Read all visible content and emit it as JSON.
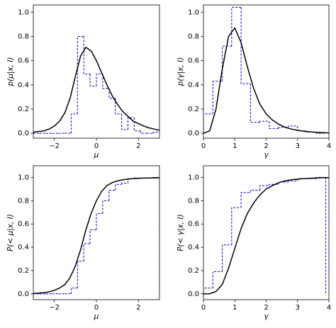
{
  "chart_data": [
    {
      "type": "histogram",
      "xlabel": "μ",
      "ylabel": "p(μ|x, I)",
      "bins": [
        -3.0,
        -2.7,
        -2.4,
        -2.1,
        -1.8,
        -1.5,
        -1.2,
        -0.9,
        -0.6,
        -0.3,
        0.0,
        0.3,
        0.6,
        0.9,
        1.2,
        1.5,
        1.8,
        2.1,
        2.4,
        2.7,
        3.0
      ],
      "values": [
        0,
        0,
        0,
        0,
        0,
        0,
        0.16,
        0.8,
        0.49,
        0.39,
        0.49,
        0.37,
        0.29,
        0.16,
        0.03,
        0.13,
        0.02,
        0,
        0,
        0.01
      ],
      "color": "#0000cc",
      "line": {
        "x": [
          -3,
          -2.75,
          -2.5,
          -2.25,
          -2,
          -1.75,
          -1.5,
          -1.25,
          -1,
          -0.75,
          -0.5,
          -0.25,
          0,
          0.25,
          0.5,
          0.75,
          1,
          1.25,
          1.5,
          1.75,
          2,
          2.25,
          2.5,
          2.75,
          3
        ],
        "values": [
          0.01,
          0.015,
          0.02,
          0.035,
          0.06,
          0.1,
          0.17,
          0.29,
          0.47,
          0.64,
          0.71,
          0.68,
          0.6,
          0.5,
          0.4,
          0.31,
          0.24,
          0.18,
          0.14,
          0.1,
          0.08,
          0.06,
          0.045,
          0.035,
          0.025
        ],
        "color": "#000000"
      },
      "xlim": [
        -3,
        3
      ],
      "ylim": [
        -0.04,
        1.06
      ],
      "xticks": [
        {
          "value": -2,
          "label": "−2"
        },
        0,
        2
      ],
      "yticks": [
        {
          "value": 0,
          "label": "0.0"
        },
        0.2,
        0.4,
        0.6,
        0.8,
        {
          "value": 1,
          "label": "1.0"
        }
      ]
    },
    {
      "type": "histogram",
      "xlabel": "γ",
      "ylabel": "p(γ|x, I)",
      "bins": [
        0,
        0.3,
        0.6,
        0.9,
        1.2,
        1.5,
        1.8,
        2.1,
        2.4,
        2.7,
        3.0,
        3.3,
        3.6,
        3.9
      ],
      "values": [
        0.16,
        0.43,
        0.72,
        1.04,
        0.41,
        0.09,
        0.1,
        0.04,
        0.05,
        0.06,
        0.02,
        0.01,
        0
      ],
      "color": "#0000cc",
      "line": {
        "x": [
          0,
          0.2,
          0.4,
          0.6,
          0.8,
          1.0,
          1.2,
          1.4,
          1.6,
          1.8,
          2.0,
          2.2,
          2.4,
          2.6,
          2.8,
          3.0,
          3.2,
          3.4,
          3.6,
          3.8,
          4.0
        ],
        "values": [
          0,
          0.02,
          0.2,
          0.53,
          0.8,
          0.87,
          0.75,
          0.55,
          0.37,
          0.24,
          0.16,
          0.11,
          0.075,
          0.05,
          0.035,
          0.025,
          0.017,
          0.012,
          0.008,
          0.005,
          0.003
        ],
        "color": "#000000"
      },
      "xlim": [
        0,
        4
      ],
      "ylim": [
        -0.04,
        1.06
      ],
      "xticks": [
        0,
        1,
        2,
        3,
        4
      ],
      "yticks": [
        {
          "value": 0,
          "label": "0.0"
        },
        0.2,
        0.4,
        0.6,
        0.8,
        {
          "value": 1,
          "label": "1.0"
        }
      ]
    },
    {
      "type": "histogram",
      "xlabel": "μ",
      "ylabel": "P(< μ|x, I)",
      "bins": [
        -3.0,
        -2.7,
        -2.4,
        -2.1,
        -1.8,
        -1.5,
        -1.2,
        -0.9,
        -0.6,
        -0.3,
        0.0,
        0.3,
        0.6,
        0.9,
        1.2,
        1.5,
        1.8,
        2.1,
        2.4,
        2.7,
        3.0
      ],
      "values": [
        0,
        0,
        0,
        0,
        0,
        0,
        0.05,
        0.28,
        0.43,
        0.55,
        0.69,
        0.8,
        0.89,
        0.94,
        0.95,
        0.99,
        0.995,
        0.995,
        0.995,
        1.0
      ],
      "color": "#0000cc",
      "line": {
        "x": [
          -3,
          -2.75,
          -2.5,
          -2.25,
          -2,
          -1.75,
          -1.5,
          -1.25,
          -1,
          -0.75,
          -0.5,
          -0.25,
          0,
          0.25,
          0.5,
          0.75,
          1,
          1.25,
          1.5,
          1.75,
          2,
          2.25,
          2.5,
          2.75,
          3
        ],
        "values": [
          0.003,
          0.006,
          0.01,
          0.017,
          0.03,
          0.05,
          0.08,
          0.14,
          0.24,
          0.38,
          0.55,
          0.69,
          0.8,
          0.88,
          0.93,
          0.955,
          0.97,
          0.98,
          0.985,
          0.99,
          0.992,
          0.994,
          0.995,
          0.996,
          0.997
        ],
        "color": "#000000"
      },
      "xlim": [
        -3,
        3
      ],
      "ylim": [
        -0.05,
        1.1
      ],
      "xticks": [
        {
          "value": -2,
          "label": "−2"
        },
        0,
        2
      ],
      "yticks": [
        {
          "value": 0,
          "label": "0.0"
        },
        0.2,
        0.4,
        0.6,
        0.8,
        {
          "value": 1,
          "label": "1.0"
        }
      ]
    },
    {
      "type": "histogram",
      "xlabel": "γ",
      "ylabel": "P(< γ|x, I)",
      "bins": [
        0,
        0.3,
        0.6,
        0.9,
        1.2,
        1.5,
        1.8,
        2.1,
        2.4,
        2.7,
        3.0,
        3.3,
        3.6,
        3.9
      ],
      "values": [
        0.05,
        0.19,
        0.42,
        0.74,
        0.87,
        0.89,
        0.93,
        0.94,
        0.96,
        0.97,
        0.99,
        0.99,
        1.0
      ],
      "color": "#0000cc",
      "line": {
        "x": [
          0,
          0.2,
          0.4,
          0.6,
          0.8,
          1.0,
          1.2,
          1.4,
          1.6,
          1.8,
          2.0,
          2.2,
          2.4,
          2.6,
          2.8,
          3.0,
          3.2,
          3.4,
          3.6,
          3.8,
          4.0
        ],
        "values": [
          0,
          0.001,
          0.02,
          0.08,
          0.22,
          0.39,
          0.56,
          0.69,
          0.78,
          0.85,
          0.9,
          0.93,
          0.955,
          0.97,
          0.98,
          0.985,
          0.99,
          0.993,
          0.995,
          0.997,
          0.998
        ],
        "color": "#000000"
      },
      "xlim": [
        0,
        4
      ],
      "ylim": [
        -0.05,
        1.1
      ],
      "xticks": [
        0,
        1,
        2,
        3,
        4
      ],
      "yticks": [
        {
          "value": 0,
          "label": "0.0"
        },
        0.2,
        0.4,
        0.6,
        0.8,
        {
          "value": 1,
          "label": "1.0"
        }
      ]
    }
  ]
}
